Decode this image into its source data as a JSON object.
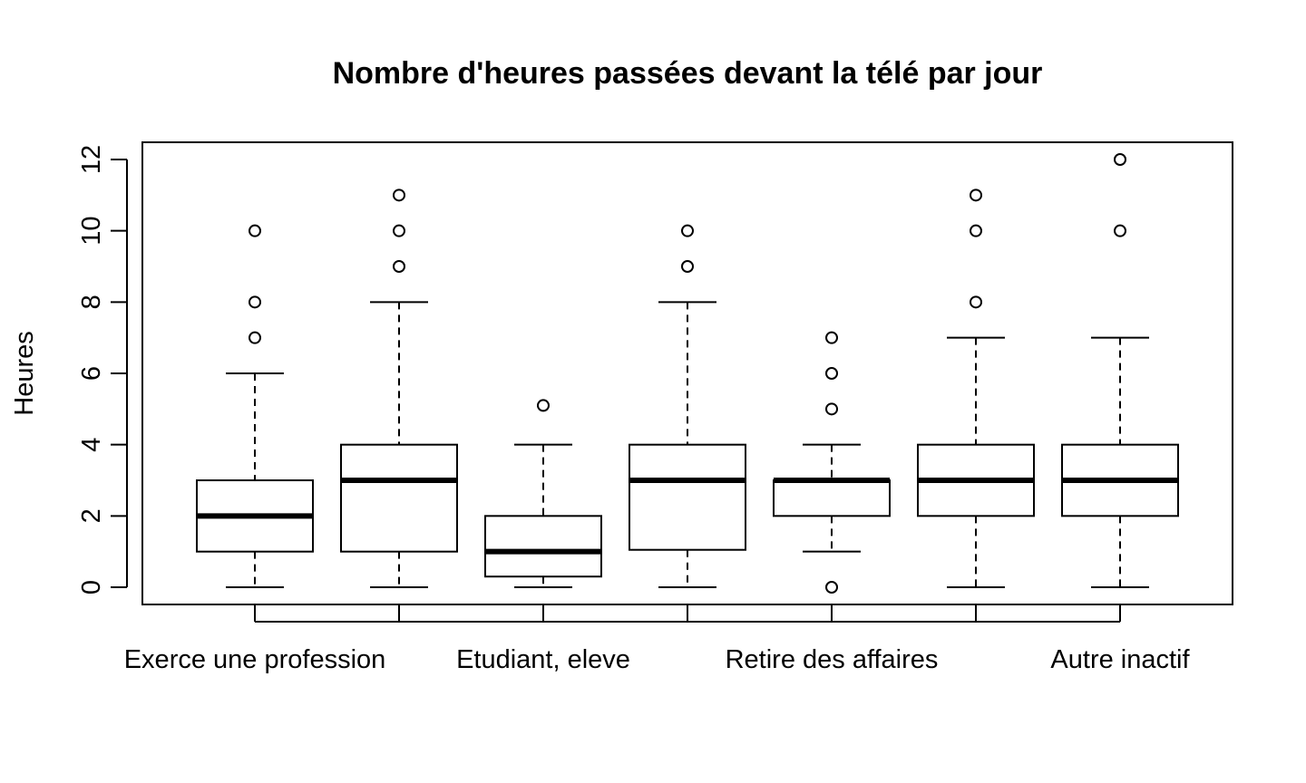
{
  "chart_data": {
    "type": "boxplot",
    "title": "Nombre d'heures passées devant la télé par jour",
    "ylabel": "Heures",
    "xlabel": "",
    "ylim": [
      0,
      12
    ],
    "y_ticks": [
      0,
      2,
      4,
      6,
      8,
      10,
      12
    ],
    "x_tick_labels_shown": [
      "Exerce une profession",
      "",
      "Etudiant, eleve",
      "",
      "Retire des affaires",
      "",
      "Autre inactif"
    ],
    "boxes": [
      {
        "label": "Exerce une profession",
        "whisker_low": 0,
        "q1": 1,
        "median": 2,
        "q3": 3,
        "whisker_high": 6,
        "outliers": [
          7,
          8,
          10
        ]
      },
      {
        "label": "",
        "whisker_low": 0,
        "q1": 1,
        "median": 3,
        "q3": 4,
        "whisker_high": 8,
        "outliers": [
          9,
          10,
          11
        ]
      },
      {
        "label": "Etudiant, eleve",
        "whisker_low": 0,
        "q1": 0.3,
        "median": 1,
        "q3": 2,
        "whisker_high": 4,
        "outliers": [
          5.1
        ]
      },
      {
        "label": "",
        "whisker_low": 0,
        "q1": 1.05,
        "median": 3,
        "q3": 4,
        "whisker_high": 8,
        "outliers": [
          9,
          10
        ]
      },
      {
        "label": "Retire des affaires",
        "whisker_low": 1,
        "q1": 2,
        "median": 3,
        "q3": 3,
        "whisker_high": 4,
        "outliers": [
          0,
          5,
          6,
          7
        ]
      },
      {
        "label": "",
        "whisker_low": 0,
        "q1": 2,
        "median": 3,
        "q3": 4,
        "whisker_high": 7,
        "outliers": [
          8,
          10,
          11
        ]
      },
      {
        "label": "Autre inactif",
        "whisker_low": 0,
        "q1": 2,
        "median": 3,
        "q3": 4,
        "whisker_high": 7,
        "outliers": [
          10,
          12
        ]
      }
    ]
  }
}
